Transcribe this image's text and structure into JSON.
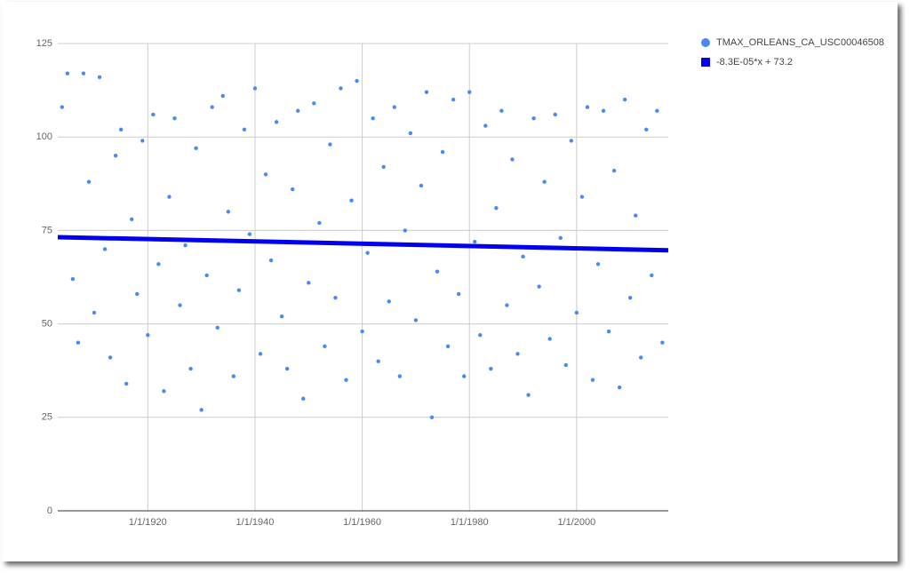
{
  "chart_data": {
    "type": "scatter",
    "xlim": [
      1903.2,
      2017.1
    ],
    "ylim": [
      0,
      125
    ],
    "xticks": [
      {
        "value": 1920,
        "label": "1/1/1920"
      },
      {
        "value": 1940,
        "label": "1/1/1940"
      },
      {
        "value": 1960,
        "label": "1/1/1960"
      },
      {
        "value": 1980,
        "label": "1/1/1980"
      },
      {
        "value": 2000,
        "label": "1/1/2000"
      }
    ],
    "yticks": [
      0,
      25,
      50,
      75,
      100,
      125
    ],
    "grid": true,
    "legend": "right",
    "series": [
      {
        "name": "TMAX_ORLEANS_CA_USC00046508",
        "color": "#4a8af0",
        "type": "scatter",
        "x": [
          1904,
          1905,
          1906,
          1907,
          1908,
          1909,
          1910,
          1911,
          1912,
          1913,
          1914,
          1915,
          1916,
          1917,
          1918,
          1919,
          1920,
          1921,
          1922,
          1923,
          1924,
          1925,
          1926,
          1927,
          1928,
          1929,
          1930,
          1931,
          1932,
          1933,
          1934,
          1935,
          1936,
          1937,
          1938,
          1939,
          1940,
          1941,
          1942,
          1943,
          1944,
          1945,
          1946,
          1947,
          1948,
          1949,
          1950,
          1951,
          1952,
          1953,
          1954,
          1955,
          1956,
          1957,
          1958,
          1959,
          1960,
          1961,
          1962,
          1963,
          1964,
          1965,
          1966,
          1967,
          1968,
          1969,
          1970,
          1971,
          1972,
          1973,
          1974,
          1975,
          1976,
          1977,
          1978,
          1979,
          1980,
          1981,
          1982,
          1983,
          1984,
          1985,
          1986,
          1987,
          1988,
          1989,
          1990,
          1991,
          1992,
          1993,
          1994,
          1995,
          1996,
          1997,
          1998,
          1999,
          2000,
          2001,
          2002,
          2003,
          2004,
          2005,
          2006,
          2007,
          2008,
          2009,
          2010,
          2011,
          2012,
          2013,
          2014,
          2015,
          2016
        ],
        "values": [
          108,
          117,
          62,
          45,
          117,
          88,
          53,
          116,
          70,
          41,
          95,
          102,
          34,
          78,
          58,
          99,
          47,
          106,
          66,
          32,
          84,
          105,
          55,
          71,
          38,
          97,
          27,
          63,
          108,
          49,
          111,
          80,
          36,
          59,
          102,
          74,
          113,
          42,
          90,
          67,
          104,
          52,
          38,
          86,
          107,
          30,
          61,
          109,
          77,
          44,
          98,
          57,
          113,
          35,
          83,
          115,
          48,
          69,
          105,
          40,
          92,
          56,
          108,
          36,
          75,
          101,
          51,
          87,
          112,
          25,
          64,
          96,
          44,
          110,
          58,
          36,
          112,
          72,
          47,
          103,
          38,
          81,
          107,
          55,
          94,
          42,
          68,
          31,
          105,
          60,
          88,
          46,
          106,
          73,
          39,
          99,
          53,
          84,
          108,
          35,
          66,
          107,
          48,
          91,
          33,
          110,
          57,
          79,
          41,
          102,
          63,
          107,
          45
        ]
      },
      {
        "name": "-8.3E-05*x + 73.2",
        "color": "#0000ee",
        "type": "line",
        "x": [
          1903.2,
          2017.1
        ],
        "values": [
          73.2,
          69.7
        ]
      }
    ]
  }
}
